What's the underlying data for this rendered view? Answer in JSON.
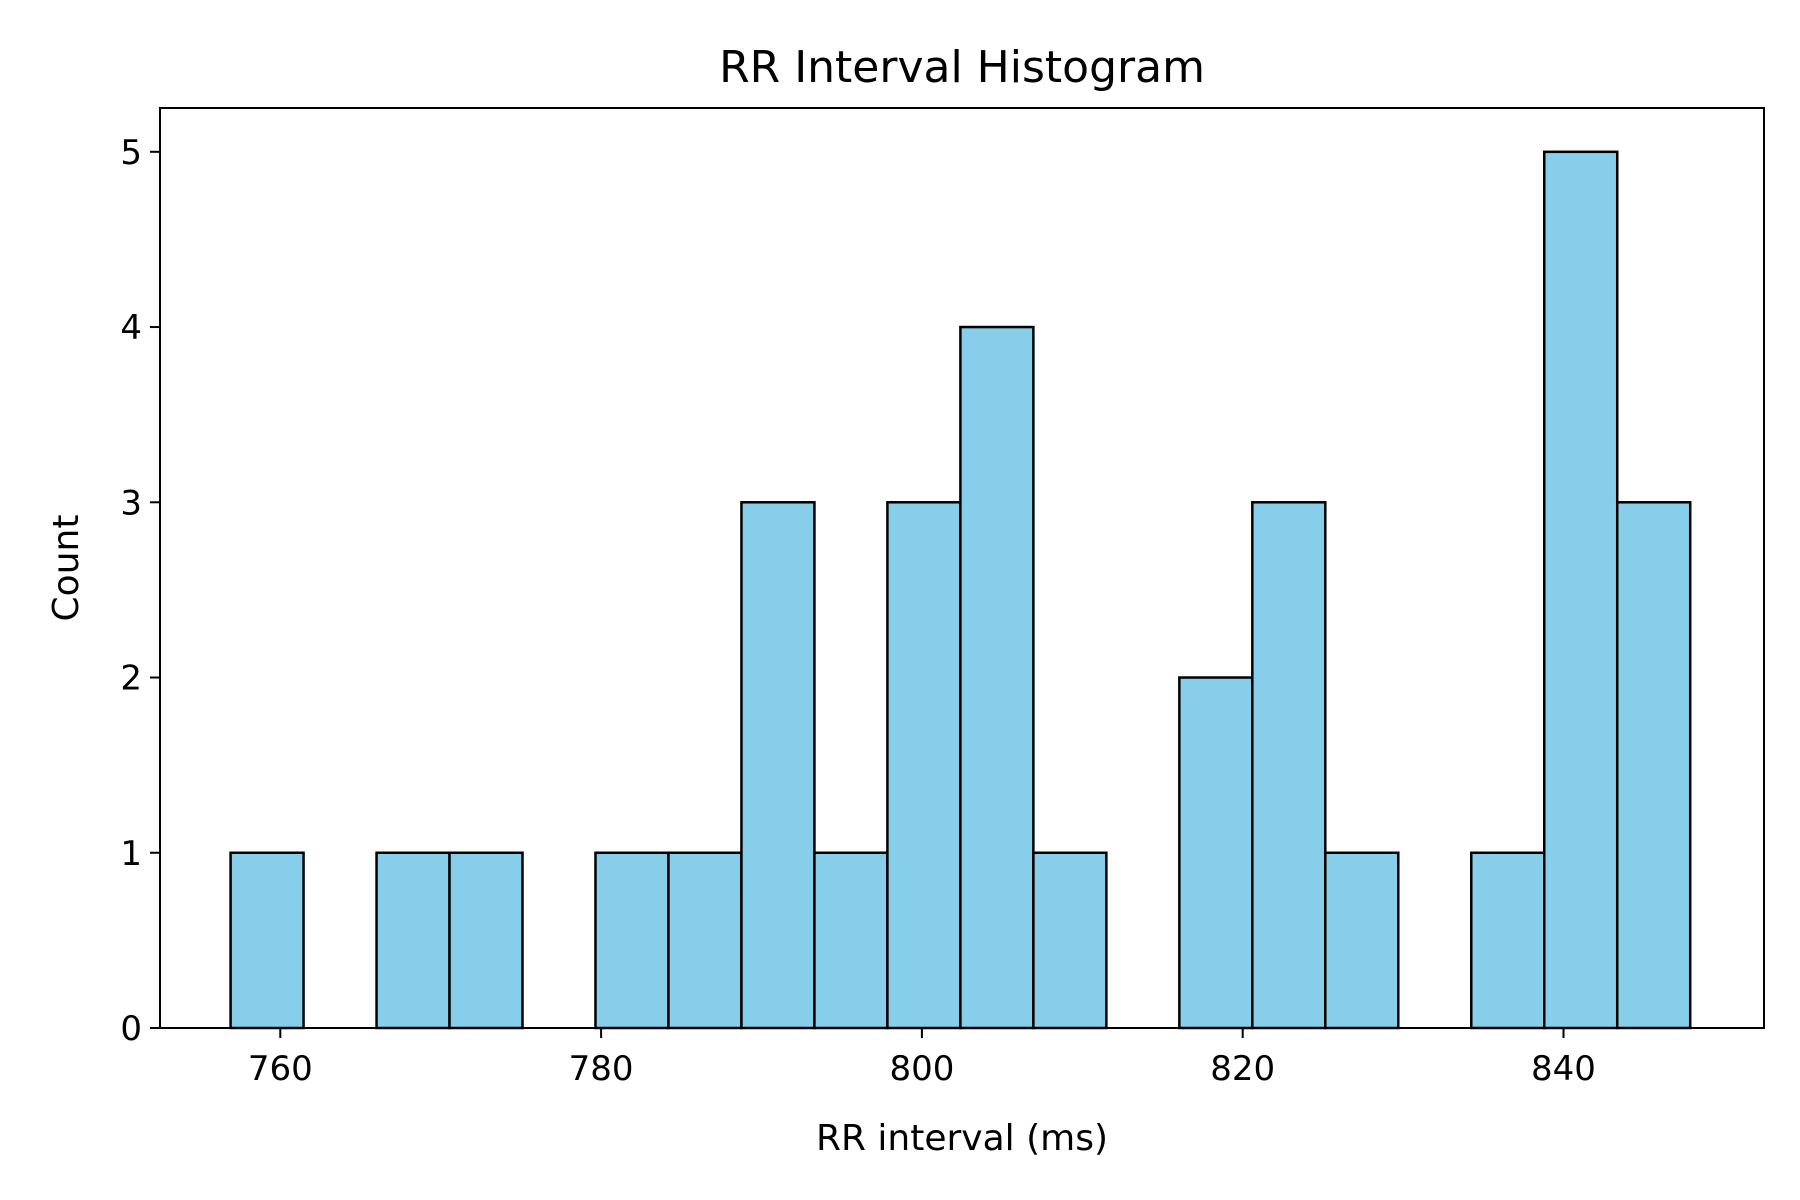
{
  "chart_data": {
    "type": "bar",
    "title": "RR Interval Histogram",
    "xlabel": "RR interval (ms)",
    "ylabel": "Count",
    "bins": {
      "start": 756.9,
      "width": 4.55,
      "counts": [
        1,
        0,
        1,
        1,
        0,
        1,
        1,
        3,
        1,
        3,
        4,
        1,
        0,
        2,
        3,
        1,
        0,
        1,
        5,
        3
      ]
    },
    "xlim": [
      752.5,
      852.5
    ],
    "ylim": [
      0,
      5.25
    ],
    "xticks": [
      760,
      780,
      800,
      820,
      840
    ],
    "yticks": [
      0,
      1,
      2,
      3,
      4,
      5
    ],
    "grid": false,
    "colors": {
      "bar_fill": "#87CEEB",
      "bar_edge": "#000000"
    }
  }
}
